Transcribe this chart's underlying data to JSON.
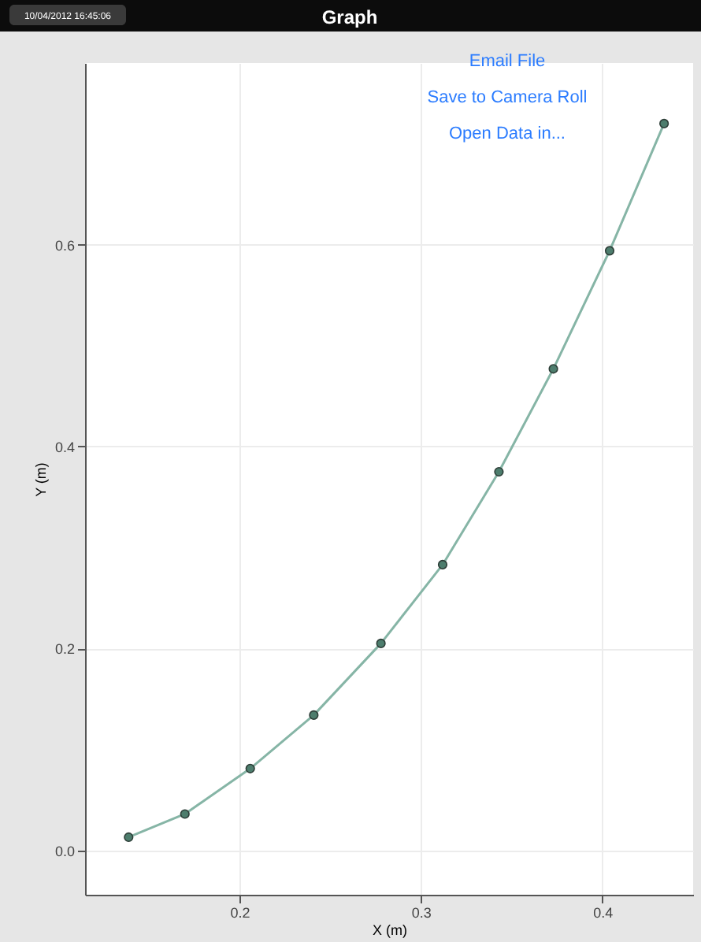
{
  "chart_data": {
    "type": "line",
    "title": "Graph",
    "xlabel": "X (m)",
    "ylabel": "Y (m)",
    "annotations": [
      "10/04/2012 16:45:06",
      "Email File",
      "Save to Camera Roll",
      "Open Data in..."
    ],
    "x": [
      0.139,
      0.17,
      0.206,
      0.241,
      0.278,
      0.312,
      0.343,
      0.373,
      0.404,
      0.434
    ],
    "series": [
      {
        "color": "#86b5a6",
        "values": [
          0.013,
          0.036,
          0.081,
          0.134,
          0.205,
          0.283,
          0.375,
          0.477,
          0.594,
          0.72
        ]
      }
    ],
    "xlim": [
      0.115,
      0.45
    ],
    "ylim": [
      -0.044,
      0.78
    ],
    "xticks": [
      {
        "value": 0.2,
        "label": "0.2"
      },
      {
        "value": 0.3,
        "label": "0.3"
      },
      {
        "value": 0.4,
        "label": "0.4"
      }
    ],
    "yticks": [
      {
        "value": 0,
        "label": "0.0"
      },
      {
        "value": 0.2,
        "label": "0.2"
      },
      {
        "value": 0.4,
        "label": "0.4"
      },
      {
        "value": 0.6,
        "label": "0.6"
      }
    ],
    "grid": true,
    "marker": "circle",
    "line_style": "solid"
  }
}
